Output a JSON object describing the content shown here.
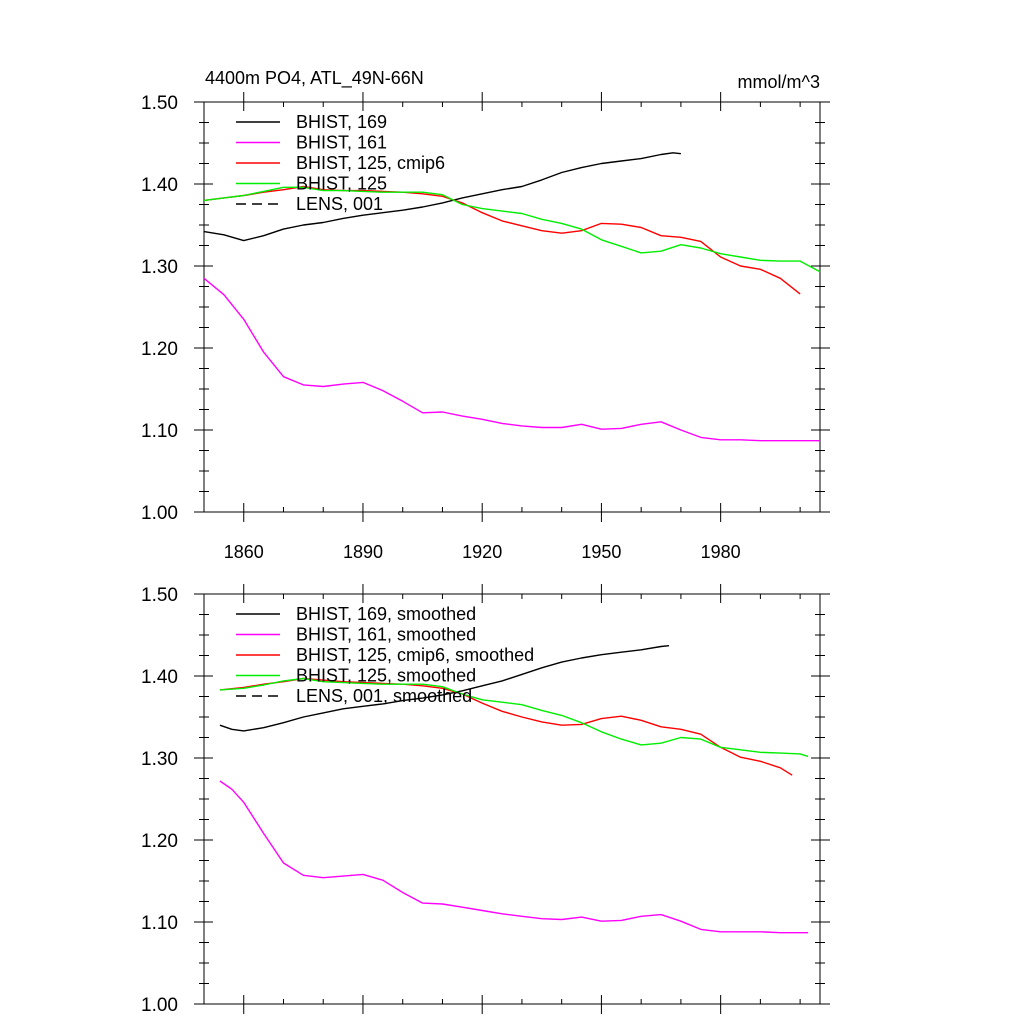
{
  "chart_data": [
    {
      "type": "line",
      "title": "4400m PO4, ATL_49N-66N",
      "units": "mmol/m^3",
      "xlim": [
        1850,
        2005
      ],
      "ylim": [
        1.0,
        1.5
      ],
      "xticks": [
        {
          "value": 1860,
          "label": "1860"
        },
        {
          "value": 1890,
          "label": "1890"
        },
        {
          "value": 1920,
          "label": "1920"
        },
        {
          "value": 1950,
          "label": "1950"
        },
        {
          "value": 1980,
          "label": "1980"
        }
      ],
      "yticks": [
        {
          "value": 1.0,
          "label": "1.00"
        },
        {
          "value": 1.1,
          "label": "1.10"
        },
        {
          "value": 1.2,
          "label": "1.20"
        },
        {
          "value": 1.3,
          "label": "1.30"
        },
        {
          "value": 1.4,
          "label": "1.40"
        },
        {
          "value": 1.5,
          "label": "1.50"
        }
      ],
      "series": [
        {
          "name": "BHIST, 169",
          "color": "#000000",
          "dash": false,
          "x": [
            1850,
            1855,
            1860,
            1865,
            1870,
            1875,
            1880,
            1885,
            1890,
            1895,
            1900,
            1905,
            1910,
            1915,
            1920,
            1925,
            1930,
            1935,
            1940,
            1945,
            1950,
            1955,
            1960,
            1965,
            1968,
            1970
          ],
          "y": [
            1.342,
            1.338,
            1.331,
            1.337,
            1.345,
            1.35,
            1.353,
            1.358,
            1.362,
            1.365,
            1.368,
            1.372,
            1.377,
            1.383,
            1.388,
            1.393,
            1.397,
            1.405,
            1.414,
            1.42,
            1.425,
            1.428,
            1.431,
            1.436,
            1.438,
            1.437
          ]
        },
        {
          "name": "BHIST, 161",
          "color": "#ff00ff",
          "dash": false,
          "x": [
            1850,
            1855,
            1860,
            1865,
            1870,
            1875,
            1880,
            1885,
            1890,
            1895,
            1900,
            1905,
            1910,
            1915,
            1920,
            1925,
            1930,
            1935,
            1940,
            1945,
            1950,
            1955,
            1960,
            1965,
            1970,
            1975,
            1980,
            1985,
            1990,
            1995,
            2000,
            2005
          ],
          "y": [
            1.285,
            1.265,
            1.235,
            1.195,
            1.165,
            1.155,
            1.153,
            1.156,
            1.158,
            1.148,
            1.135,
            1.121,
            1.122,
            1.117,
            1.113,
            1.108,
            1.105,
            1.103,
            1.103,
            1.107,
            1.101,
            1.102,
            1.107,
            1.11,
            1.1,
            1.091,
            1.088,
            1.088,
            1.087,
            1.087,
            1.087,
            1.087
          ]
        },
        {
          "name": "BHIST, 125, cmip6",
          "color": "#ff0000",
          "dash": false,
          "x": [
            1850,
            1855,
            1860,
            1865,
            1870,
            1875,
            1880,
            1885,
            1890,
            1895,
            1900,
            1905,
            1910,
            1915,
            1920,
            1925,
            1930,
            1935,
            1940,
            1945,
            1950,
            1955,
            1960,
            1965,
            1970,
            1975,
            1980,
            1985,
            1990,
            1995,
            2000
          ],
          "y": [
            1.38,
            1.383,
            1.386,
            1.39,
            1.393,
            1.397,
            1.393,
            1.392,
            1.392,
            1.391,
            1.39,
            1.388,
            1.385,
            1.377,
            1.365,
            1.355,
            1.349,
            1.343,
            1.34,
            1.343,
            1.352,
            1.351,
            1.347,
            1.337,
            1.335,
            1.33,
            1.311,
            1.3,
            1.296,
            1.285,
            1.266
          ]
        },
        {
          "name": "BHIST, 125",
          "color": "#00ee00",
          "dash": false,
          "x": [
            1850,
            1855,
            1860,
            1865,
            1870,
            1875,
            1880,
            1885,
            1890,
            1895,
            1900,
            1905,
            1910,
            1915,
            1920,
            1925,
            1930,
            1935,
            1940,
            1945,
            1950,
            1955,
            1960,
            1965,
            1970,
            1975,
            1980,
            1985,
            1990,
            1995,
            2000,
            2005
          ],
          "y": [
            1.38,
            1.383,
            1.386,
            1.391,
            1.396,
            1.396,
            1.392,
            1.392,
            1.391,
            1.39,
            1.39,
            1.39,
            1.387,
            1.375,
            1.37,
            1.367,
            1.364,
            1.357,
            1.352,
            1.345,
            1.332,
            1.324,
            1.316,
            1.318,
            1.326,
            1.322,
            1.315,
            1.311,
            1.307,
            1.306,
            1.306,
            1.293
          ]
        },
        {
          "name": "LENS, 001",
          "color": "#000000",
          "dash": true,
          "x": [],
          "y": []
        }
      ]
    },
    {
      "type": "line",
      "title": "",
      "xlim": [
        1850,
        2005
      ],
      "ylim": [
        1.0,
        1.5
      ],
      "yticks": [
        {
          "value": 1.0,
          "label": "1.00"
        },
        {
          "value": 1.1,
          "label": "1.10"
        },
        {
          "value": 1.2,
          "label": "1.20"
        },
        {
          "value": 1.3,
          "label": "1.30"
        },
        {
          "value": 1.4,
          "label": "1.40"
        },
        {
          "value": 1.5,
          "label": "1.50"
        }
      ],
      "series": [
        {
          "name": "BHIST, 169, smoothed",
          "color": "#000000",
          "dash": false,
          "x": [
            1854,
            1857,
            1860,
            1865,
            1870,
            1875,
            1880,
            1885,
            1890,
            1895,
            1900,
            1905,
            1910,
            1915,
            1920,
            1925,
            1930,
            1935,
            1940,
            1945,
            1950,
            1955,
            1960,
            1965,
            1967
          ],
          "y": [
            1.34,
            1.335,
            1.333,
            1.337,
            1.343,
            1.35,
            1.355,
            1.36,
            1.363,
            1.366,
            1.37,
            1.373,
            1.377,
            1.382,
            1.388,
            1.394,
            1.402,
            1.41,
            1.417,
            1.422,
            1.426,
            1.429,
            1.432,
            1.436,
            1.437
          ]
        },
        {
          "name": "BHIST, 161, smoothed",
          "color": "#ff00ff",
          "dash": false,
          "x": [
            1854,
            1857,
            1860,
            1865,
            1870,
            1875,
            1880,
            1885,
            1890,
            1895,
            1900,
            1905,
            1910,
            1915,
            1920,
            1925,
            1930,
            1935,
            1940,
            1945,
            1950,
            1955,
            1960,
            1965,
            1970,
            1975,
            1980,
            1985,
            1990,
            1995,
            2002
          ],
          "y": [
            1.272,
            1.262,
            1.246,
            1.208,
            1.172,
            1.157,
            1.154,
            1.156,
            1.158,
            1.151,
            1.136,
            1.123,
            1.122,
            1.118,
            1.114,
            1.11,
            1.107,
            1.104,
            1.103,
            1.106,
            1.101,
            1.102,
            1.107,
            1.109,
            1.101,
            1.091,
            1.088,
            1.088,
            1.088,
            1.087,
            1.087
          ]
        },
        {
          "name": "BHIST, 125, cmip6, smoothed",
          "color": "#ff0000",
          "dash": false,
          "x": [
            1854,
            1860,
            1865,
            1870,
            1875,
            1880,
            1885,
            1890,
            1895,
            1900,
            1905,
            1910,
            1915,
            1920,
            1925,
            1930,
            1935,
            1940,
            1945,
            1950,
            1955,
            1960,
            1965,
            1970,
            1975,
            1980,
            1985,
            1990,
            1995,
            1998
          ],
          "y": [
            1.383,
            1.386,
            1.39,
            1.393,
            1.397,
            1.395,
            1.393,
            1.392,
            1.391,
            1.39,
            1.388,
            1.385,
            1.378,
            1.367,
            1.357,
            1.35,
            1.344,
            1.34,
            1.341,
            1.348,
            1.351,
            1.346,
            1.338,
            1.335,
            1.329,
            1.313,
            1.301,
            1.296,
            1.288,
            1.279
          ]
        },
        {
          "name": "BHIST, 125, smoothed",
          "color": "#00ee00",
          "dash": false,
          "x": [
            1854,
            1860,
            1865,
            1870,
            1875,
            1880,
            1885,
            1890,
            1895,
            1900,
            1905,
            1910,
            1915,
            1920,
            1925,
            1930,
            1935,
            1940,
            1945,
            1950,
            1955,
            1960,
            1965,
            1970,
            1975,
            1980,
            1985,
            1990,
            1995,
            2000,
            2002
          ],
          "y": [
            1.383,
            1.385,
            1.389,
            1.394,
            1.397,
            1.393,
            1.392,
            1.391,
            1.39,
            1.39,
            1.39,
            1.387,
            1.378,
            1.371,
            1.368,
            1.365,
            1.358,
            1.352,
            1.343,
            1.332,
            1.323,
            1.316,
            1.318,
            1.325,
            1.323,
            1.313,
            1.31,
            1.307,
            1.306,
            1.305,
            1.302
          ]
        },
        {
          "name": "LENS, 001, smoothed",
          "color": "#000000",
          "dash": true,
          "x": [],
          "y": []
        }
      ]
    }
  ]
}
